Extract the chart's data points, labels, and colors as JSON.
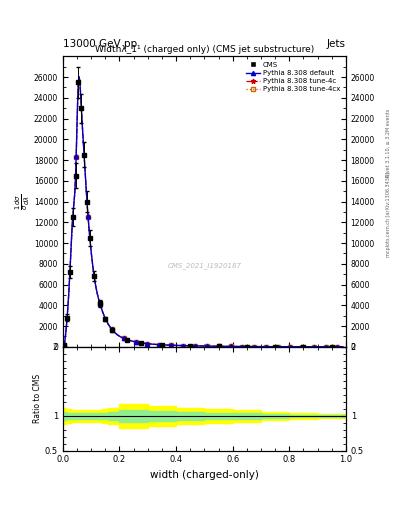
{
  "title_top": "13000 GeV pp",
  "title_right": "Jets",
  "plot_title": "Widthλ_1¹ (charged only) (CMS jet substructure)",
  "xlabel": "width (charged-only)",
  "ratio_ylabel": "Ratio to CMS",
  "watermark": "CMS_2021_I1920187",
  "rivet_text": "Rivet 3.1.10, ≥ 3.2M events",
  "mcplots_text": "mcplots.cern.ch [arXiv:1306.3436]",
  "xlim": [
    0.0,
    1.0
  ],
  "ylim_main": [
    0,
    28000
  ],
  "ylim_ratio": [
    0.5,
    2.0
  ],
  "yticks_main": [
    0,
    2000,
    4000,
    6000,
    8000,
    10000,
    12000,
    14000,
    16000,
    18000,
    20000,
    22000,
    24000,
    26000
  ],
  "ytick_labels_main": [
    "0",
    "2000",
    "4000",
    "6000",
    "8000",
    "10000",
    "12000",
    "14000",
    "16000",
    "18000",
    "20000",
    "22000",
    "24000",
    "26000"
  ],
  "yticks_ratio": [
    0.5,
    1.0,
    2.0
  ],
  "x_data": [
    0.005,
    0.015,
    0.025,
    0.035,
    0.045,
    0.055,
    0.065,
    0.075,
    0.085,
    0.095,
    0.11,
    0.13,
    0.15,
    0.175,
    0.225,
    0.275,
    0.35,
    0.45,
    0.55,
    0.65,
    0.75,
    0.85,
    0.95
  ],
  "cms_y": [
    180,
    2800,
    7200,
    12500,
    16500,
    25500,
    23000,
    18500,
    14000,
    10500,
    6800,
    4200,
    2700,
    1600,
    700,
    380,
    190,
    100,
    50,
    25,
    12,
    6,
    3
  ],
  "cms_yerr": [
    80,
    350,
    600,
    900,
    1200,
    1500,
    1400,
    1200,
    1000,
    800,
    500,
    330,
    220,
    140,
    70,
    42,
    24,
    14,
    8,
    5,
    3,
    2,
    1
  ],
  "pythia_default_y": [
    180,
    2800,
    7300,
    12600,
    16600,
    25600,
    23100,
    18600,
    14100,
    10600,
    6900,
    4250,
    2730,
    1620,
    710,
    385,
    192,
    102,
    51,
    26,
    13,
    6,
    3
  ],
  "pythia_4c_y": [
    175,
    2780,
    7250,
    12550,
    16550,
    25550,
    23050,
    18550,
    14050,
    10550,
    6850,
    4220,
    2720,
    1610,
    705,
    382,
    191,
    101,
    51,
    25,
    12,
    6,
    3
  ],
  "pythia_4cx_y": [
    170,
    2750,
    7200,
    12500,
    16500,
    25500,
    23000,
    18500,
    14000,
    10500,
    6800,
    4200,
    2700,
    1600,
    700,
    380,
    190,
    100,
    50,
    25,
    12,
    6,
    3
  ],
  "ratio_yellow_upper": [
    1.12,
    1.1,
    1.1,
    1.09,
    1.08,
    1.08,
    1.08,
    1.08,
    1.08,
    1.08,
    1.08,
    1.09,
    1.1,
    1.12,
    1.18,
    1.18,
    1.15,
    1.12,
    1.1,
    1.08,
    1.06,
    1.05,
    1.03
  ],
  "ratio_yellow_lower": [
    0.88,
    0.9,
    0.9,
    0.91,
    0.92,
    0.92,
    0.92,
    0.92,
    0.92,
    0.92,
    0.92,
    0.91,
    0.9,
    0.88,
    0.82,
    0.82,
    0.85,
    0.88,
    0.9,
    0.92,
    0.94,
    0.95,
    0.97
  ],
  "ratio_green_upper": [
    1.06,
    1.04,
    1.04,
    1.04,
    1.04,
    1.04,
    1.04,
    1.04,
    1.04,
    1.04,
    1.04,
    1.04,
    1.04,
    1.06,
    1.09,
    1.09,
    1.07,
    1.06,
    1.05,
    1.04,
    1.03,
    1.02,
    1.01
  ],
  "ratio_green_lower": [
    0.94,
    0.96,
    0.96,
    0.96,
    0.96,
    0.96,
    0.96,
    0.96,
    0.96,
    0.96,
    0.96,
    0.96,
    0.96,
    0.94,
    0.91,
    0.91,
    0.93,
    0.94,
    0.95,
    0.96,
    0.97,
    0.98,
    0.99
  ],
  "color_cms": "#000000",
  "color_default": "#0000cc",
  "color_4c": "#cc0000",
  "color_4cx": "#cc6600",
  "bg_color": "#ffffff"
}
